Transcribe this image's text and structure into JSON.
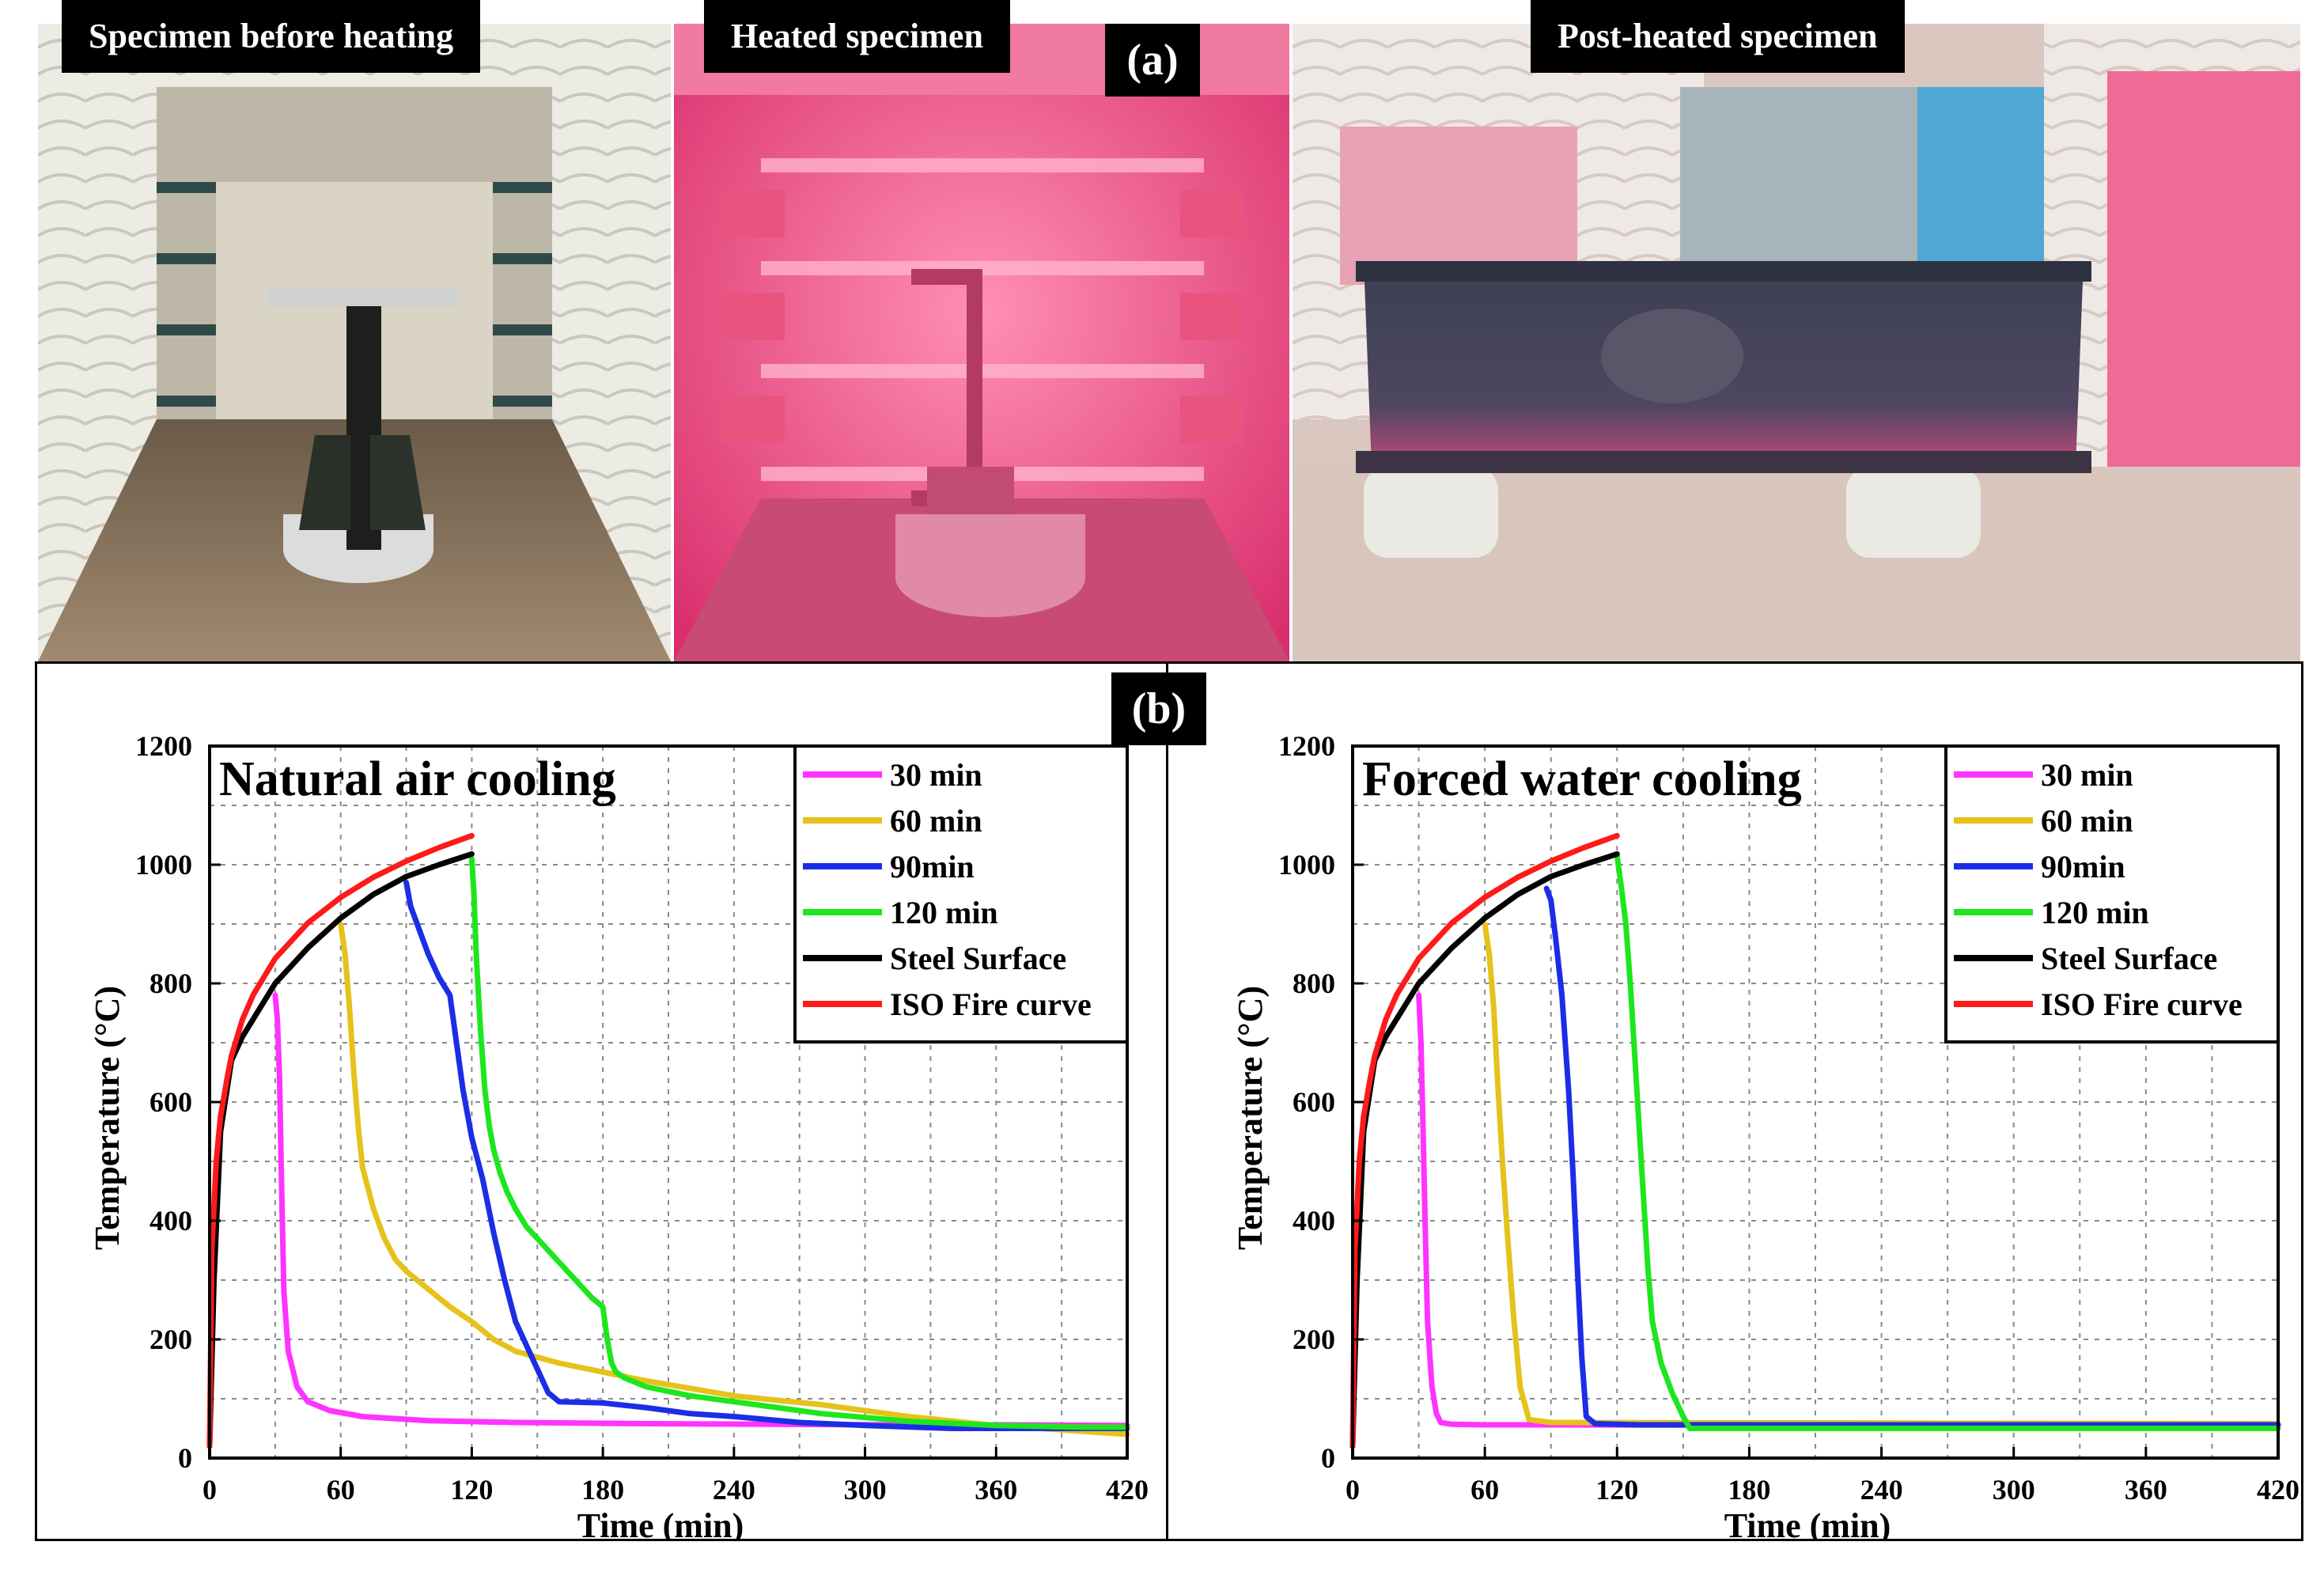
{
  "panel_a": {
    "tag": "(a)",
    "captions": [
      "Specimen before heating",
      "Heated specimen",
      "Post-heated specimen"
    ]
  },
  "panel_b": {
    "tag": "(b)"
  },
  "colors": {
    "30": "#ff33ff",
    "60": "#e6c21a",
    "90": "#1a2ee6",
    "120": "#1ee61e",
    "steel": "#000000",
    "iso": "#ff1a1a"
  },
  "chart_data": [
    {
      "type": "line",
      "title": "Natural air cooling",
      "xlabel": "Time (min)",
      "ylabel": "Temperature (°C)",
      "xlim": [
        0,
        420
      ],
      "ylim": [
        0,
        1200
      ],
      "xticks": [
        0,
        60,
        120,
        180,
        240,
        300,
        360,
        420
      ],
      "yticks": [
        0,
        200,
        400,
        600,
        800,
        1000,
        1200
      ],
      "grid": true,
      "legend_position": "top-right",
      "series": [
        {
          "name": "30 min",
          "color_key": "30",
          "x": [
            30,
            31,
            32,
            33,
            34,
            36,
            40,
            45,
            55,
            70,
            100,
            140,
            200,
            260,
            320,
            360,
            420
          ],
          "y": [
            780,
            740,
            640,
            450,
            280,
            180,
            120,
            95,
            80,
            70,
            63,
            60,
            58,
            57,
            56,
            56,
            55
          ]
        },
        {
          "name": "60 min",
          "color_key": "60",
          "x": [
            60,
            62,
            64,
            66,
            68,
            70,
            75,
            80,
            85,
            90,
            100,
            110,
            120,
            130,
            140,
            160,
            200,
            240,
            280,
            320,
            360,
            400,
            420
          ],
          "y": [
            900,
            850,
            760,
            650,
            560,
            490,
            420,
            370,
            335,
            315,
            285,
            255,
            230,
            200,
            180,
            160,
            130,
            105,
            90,
            70,
            55,
            45,
            40
          ]
        },
        {
          "name": "90min",
          "color_key": "90",
          "x": [
            90,
            92,
            95,
            100,
            105,
            110,
            113,
            116,
            120,
            125,
            130,
            135,
            140,
            145,
            150,
            155,
            160,
            180,
            200,
            220,
            240,
            270,
            300,
            340,
            380,
            420
          ],
          "y": [
            970,
            930,
            900,
            850,
            810,
            780,
            700,
            620,
            540,
            470,
            380,
            300,
            230,
            190,
            150,
            110,
            95,
            93,
            85,
            75,
            70,
            60,
            55,
            50,
            50,
            50
          ]
        },
        {
          "name": "120 min",
          "color_key": "120",
          "x": [
            120,
            121,
            122,
            124,
            126,
            128,
            130,
            133,
            136,
            140,
            145,
            150,
            155,
            160,
            165,
            170,
            175,
            180,
            182,
            184,
            186,
            190,
            200,
            220,
            250,
            280,
            320,
            360,
            400,
            420
          ],
          "y": [
            1010,
            950,
            850,
            720,
            620,
            560,
            520,
            480,
            450,
            420,
            390,
            370,
            350,
            330,
            310,
            290,
            270,
            255,
            200,
            160,
            145,
            135,
            120,
            105,
            90,
            75,
            62,
            55,
            52,
            52
          ]
        },
        {
          "name": "Steel Surface",
          "color_key": "steel",
          "x": [
            0,
            2,
            5,
            10,
            15,
            20,
            30,
            45,
            60,
            75,
            90,
            105,
            120
          ],
          "y": [
            20,
            300,
            550,
            670,
            710,
            740,
            800,
            860,
            910,
            950,
            980,
            1000,
            1018
          ]
        },
        {
          "name": "ISO Fire curve",
          "color_key": "iso",
          "x": [
            0,
            1,
            3,
            5,
            8,
            10,
            15,
            20,
            30,
            45,
            60,
            75,
            90,
            105,
            120
          ],
          "y": [
            20,
            350,
            500,
            576,
            640,
            678,
            739,
            781,
            842,
            902,
            945,
            979,
            1006,
            1029,
            1049
          ]
        }
      ]
    },
    {
      "type": "line",
      "title": "Forced water cooling",
      "xlabel": "Time (min)",
      "ylabel": "Temperature (°C)",
      "xlim": [
        0,
        420
      ],
      "ylim": [
        0,
        1200
      ],
      "xticks": [
        0,
        60,
        120,
        180,
        240,
        300,
        360,
        420
      ],
      "yticks": [
        0,
        200,
        400,
        600,
        800,
        1000,
        1200
      ],
      "grid": true,
      "legend_position": "top-right",
      "series": [
        {
          "name": "30 min",
          "color_key": "30",
          "x": [
            30,
            31,
            32,
            33,
            34,
            36,
            38,
            40,
            45,
            60,
            80,
            420
          ],
          "y": [
            780,
            700,
            550,
            380,
            230,
            120,
            75,
            60,
            57,
            56,
            56,
            55
          ]
        },
        {
          "name": "60 min",
          "color_key": "60",
          "x": [
            60,
            62,
            64,
            66,
            68,
            70,
            73,
            76,
            80,
            90,
            420
          ],
          "y": [
            900,
            850,
            760,
            620,
            500,
            390,
            240,
            120,
            65,
            60,
            58
          ]
        },
        {
          "name": "90min",
          "color_key": "90",
          "x": [
            88,
            90,
            92,
            95,
            98,
            100,
            102,
            104,
            106,
            110,
            130,
            420
          ],
          "y": [
            960,
            940,
            880,
            780,
            620,
            480,
            320,
            170,
            70,
            58,
            56,
            56
          ]
        },
        {
          "name": "120 min",
          "color_key": "120",
          "x": [
            120,
            122,
            124,
            126,
            128,
            130,
            132,
            134,
            136,
            140,
            145,
            150,
            153,
            160,
            420
          ],
          "y": [
            1015,
            960,
            900,
            800,
            680,
            560,
            440,
            320,
            230,
            160,
            110,
            70,
            50,
            50,
            50
          ]
        },
        {
          "name": "Steel Surface",
          "color_key": "steel",
          "x": [
            0,
            2,
            5,
            10,
            15,
            20,
            30,
            45,
            60,
            75,
            90,
            105,
            120
          ],
          "y": [
            20,
            300,
            550,
            670,
            710,
            740,
            800,
            860,
            910,
            950,
            980,
            1000,
            1018
          ]
        },
        {
          "name": "ISO Fire curve",
          "color_key": "iso",
          "x": [
            0,
            1,
            3,
            5,
            8,
            10,
            15,
            20,
            30,
            45,
            60,
            75,
            90,
            105,
            120
          ],
          "y": [
            20,
            350,
            500,
            576,
            640,
            678,
            739,
            781,
            842,
            902,
            945,
            979,
            1006,
            1029,
            1049
          ]
        }
      ]
    }
  ]
}
